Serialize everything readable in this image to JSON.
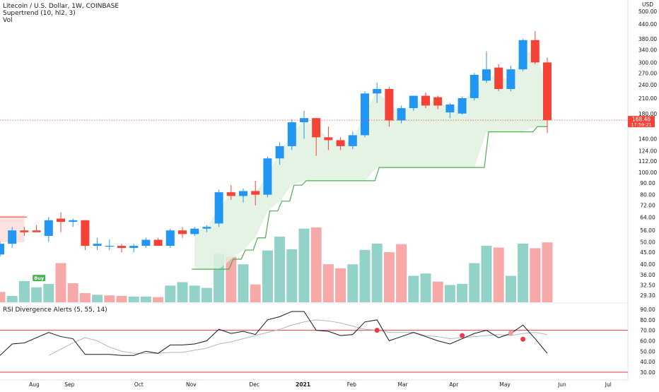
{
  "chart_data": {
    "type": "candlestick",
    "symbol_line": "Litecoin / U.S. Dollar, 1W, COINBASE",
    "indicator_supertrend": "Supertrend (10, hl2, 3)",
    "indicator_vol": "Vol",
    "rsi_title": "RSI Divergence Alerts (5, 55, 14)",
    "price_axis_unit": "USD",
    "price_ticks": [
      "500.00",
      "440.00",
      "380.00",
      "340.00",
      "300.00",
      "270.00",
      "240.00",
      "210.00",
      "180.00",
      "140.00",
      "124.00",
      "112.00",
      "100.00",
      "90.00",
      "80.00",
      "72.00",
      "64.00",
      "56.00",
      "50.00",
      "45.00",
      "40.00",
      "36.00",
      "32.50",
      "29.30"
    ],
    "rsi_ticks": [
      "90.00",
      "80.00",
      "70.00",
      "60.00",
      "50.00",
      "40.00",
      "30.00"
    ],
    "time_labels": [
      "Aug",
      "Sep",
      "Oct",
      "Nov",
      "Dec",
      "2021",
      "Feb",
      "Mar",
      "Apr",
      "May",
      "Jun",
      "Jul"
    ],
    "last_price": "168.46",
    "countdown": "17:59:21",
    "buy_label": "Buy",
    "candles": [
      {
        "o": 44,
        "h": 50,
        "l": 43,
        "c": 49
      },
      {
        "o": 49,
        "h": 58,
        "l": 47,
        "c": 56
      },
      {
        "o": 56,
        "h": 58,
        "l": 53,
        "c": 55
      },
      {
        "o": 56,
        "h": 59,
        "l": 55,
        "c": 55
      },
      {
        "o": 53,
        "h": 64,
        "l": 50,
        "c": 62
      },
      {
        "o": 63,
        "h": 67,
        "l": 55,
        "c": 61
      },
      {
        "o": 61,
        "h": 63,
        "l": 58,
        "c": 62
      },
      {
        "o": 62,
        "h": 62,
        "l": 46,
        "c": 48
      },
      {
        "o": 48,
        "h": 52,
        "l": 46,
        "c": 49
      },
      {
        "o": 48,
        "h": 51,
        "l": 46,
        "c": 48
      },
      {
        "o": 48,
        "h": 49,
        "l": 45,
        "c": 47
      },
      {
        "o": 47,
        "h": 49,
        "l": 45,
        "c": 48
      },
      {
        "o": 48,
        "h": 52,
        "l": 47,
        "c": 51
      },
      {
        "o": 51,
        "h": 52,
        "l": 48,
        "c": 48
      },
      {
        "o": 48,
        "h": 57,
        "l": 47,
        "c": 56
      },
      {
        "o": 56,
        "h": 58,
        "l": 52,
        "c": 54
      },
      {
        "o": 54,
        "h": 58,
        "l": 53,
        "c": 57
      },
      {
        "o": 57,
        "h": 59,
        "l": 55,
        "c": 58
      },
      {
        "o": 60,
        "h": 84,
        "l": 58,
        "c": 82
      },
      {
        "o": 82,
        "h": 88,
        "l": 76,
        "c": 79
      },
      {
        "o": 79,
        "h": 85,
        "l": 74,
        "c": 83
      },
      {
        "o": 83,
        "h": 92,
        "l": 72,
        "c": 80
      },
      {
        "o": 80,
        "h": 117,
        "l": 78,
        "c": 115
      },
      {
        "o": 115,
        "h": 135,
        "l": 108,
        "c": 130
      },
      {
        "o": 130,
        "h": 170,
        "l": 125,
        "c": 165
      },
      {
        "o": 165,
        "h": 185,
        "l": 140,
        "c": 172
      },
      {
        "o": 172,
        "h": 172,
        "l": 118,
        "c": 142
      },
      {
        "o": 142,
        "h": 158,
        "l": 125,
        "c": 138
      },
      {
        "o": 138,
        "h": 142,
        "l": 125,
        "c": 130
      },
      {
        "o": 130,
        "h": 150,
        "l": 126,
        "c": 145
      },
      {
        "o": 145,
        "h": 225,
        "l": 142,
        "c": 220
      },
      {
        "o": 220,
        "h": 245,
        "l": 200,
        "c": 230
      },
      {
        "o": 230,
        "h": 235,
        "l": 158,
        "c": 168
      },
      {
        "o": 168,
        "h": 195,
        "l": 163,
        "c": 190
      },
      {
        "o": 190,
        "h": 215,
        "l": 185,
        "c": 215
      },
      {
        "o": 215,
        "h": 222,
        "l": 190,
        "c": 195
      },
      {
        "o": 212,
        "h": 215,
        "l": 188,
        "c": 195
      },
      {
        "o": 182,
        "h": 200,
        "l": 172,
        "c": 197
      },
      {
        "o": 180,
        "h": 213,
        "l": 178,
        "c": 210
      },
      {
        "o": 210,
        "h": 270,
        "l": 205,
        "c": 265
      },
      {
        "o": 250,
        "h": 335,
        "l": 245,
        "c": 280
      },
      {
        "o": 285,
        "h": 295,
        "l": 225,
        "c": 230
      },
      {
        "o": 230,
        "h": 290,
        "l": 225,
        "c": 280
      },
      {
        "o": 280,
        "h": 380,
        "l": 275,
        "c": 375
      },
      {
        "o": 375,
        "h": 410,
        "l": 295,
        "c": 300
      },
      {
        "o": 300,
        "h": 315,
        "l": 148,
        "c": 168.46
      }
    ],
    "supertrend": [
      null,
      null,
      null,
      null,
      null,
      null,
      null,
      null,
      null,
      null,
      null,
      null,
      null,
      null,
      null,
      null,
      {
        "v": 38
      },
      {
        "v": 38
      },
      {
        "v": 38
      },
      {
        "v": 42
      },
      {
        "v": 46
      },
      {
        "v": 52
      },
      {
        "v": 68
      },
      {
        "v": 75
      },
      {
        "v": 88
      },
      {
        "v": 92
      },
      {
        "v": 92
      },
      {
        "v": 92
      },
      {
        "v": 92
      },
      {
        "v": 92
      },
      {
        "v": 92
      },
      {
        "v": 105
      },
      {
        "v": 105
      },
      {
        "v": 105
      },
      {
        "v": 105
      },
      {
        "v": 105
      },
      {
        "v": 105
      },
      {
        "v": 105
      },
      {
        "v": 105
      },
      {
        "v": 105
      },
      {
        "v": 150
      },
      {
        "v": 150
      },
      {
        "v": 150
      },
      {
        "v": 150
      },
      {
        "v": 158
      },
      {
        "v": 158
      }
    ],
    "supertrend_upper_start": 64,
    "volume": [
      {
        "v": 1.8,
        "up": false
      },
      {
        "v": 1.1,
        "up": true
      },
      {
        "v": 3.7,
        "up": true
      },
      {
        "v": 2.6,
        "up": true
      },
      {
        "v": 3.2,
        "up": true
      },
      {
        "v": 6.8,
        "up": false
      },
      {
        "v": 3.3,
        "up": false
      },
      {
        "v": 1.6,
        "up": false
      },
      {
        "v": 1.3,
        "up": true
      },
      {
        "v": 1.2,
        "up": false
      },
      {
        "v": 1.1,
        "up": false
      },
      {
        "v": 1.0,
        "up": true
      },
      {
        "v": 1.0,
        "up": true
      },
      {
        "v": 0.9,
        "up": false
      },
      {
        "v": 2.9,
        "up": true
      },
      {
        "v": 3.5,
        "up": true
      },
      {
        "v": 2.9,
        "up": true
      },
      {
        "v": 2.5,
        "up": true
      },
      {
        "v": 8.4,
        "up": true
      },
      {
        "v": 7.9,
        "up": false
      },
      {
        "v": 6.6,
        "up": true
      },
      {
        "v": 3.1,
        "up": false
      },
      {
        "v": 9.0,
        "up": true
      },
      {
        "v": 11.4,
        "up": true
      },
      {
        "v": 9.2,
        "up": true
      },
      {
        "v": 12.8,
        "up": true
      },
      {
        "v": 13.0,
        "up": false
      },
      {
        "v": 6.6,
        "up": false
      },
      {
        "v": 5.9,
        "up": false
      },
      {
        "v": 6.6,
        "up": true
      },
      {
        "v": 9.1,
        "up": true
      },
      {
        "v": 10.2,
        "up": true
      },
      {
        "v": 8.7,
        "up": false
      },
      {
        "v": 10.1,
        "up": false
      },
      {
        "v": 4.6,
        "up": true
      },
      {
        "v": 5.0,
        "up": true
      },
      {
        "v": 3.6,
        "up": false
      },
      {
        "v": 3.0,
        "up": true
      },
      {
        "v": 3.2,
        "up": true
      },
      {
        "v": 6.8,
        "up": true
      },
      {
        "v": 9.8,
        "up": true
      },
      {
        "v": 9.5,
        "up": false
      },
      {
        "v": 4.6,
        "up": true
      },
      {
        "v": 10.2,
        "up": true
      },
      {
        "v": 9.4,
        "up": false
      },
      {
        "v": 10.4,
        "up": false
      }
    ],
    "rsi": [
      46,
      57,
      58,
      63,
      68,
      64,
      62,
      47,
      47,
      47,
      46,
      46,
      50,
      48,
      56,
      56,
      57,
      60,
      71,
      67,
      69,
      66,
      80,
      83,
      88,
      88,
      70,
      69,
      65,
      66,
      78,
      80,
      60,
      64,
      68,
      64,
      60,
      57,
      62,
      67,
      70,
      63,
      67,
      75,
      62,
      48
    ],
    "rsi_ma": [
      null,
      null,
      null,
      null,
      46,
      52,
      58,
      63,
      60,
      54,
      50,
      48,
      48,
      48,
      49,
      49,
      51,
      53,
      57,
      59,
      62,
      65,
      68,
      71,
      75,
      78,
      80,
      79,
      77,
      74,
      71,
      70,
      68,
      68,
      68,
      65,
      64,
      62,
      63,
      64,
      65,
      66,
      65,
      67,
      68,
      66
    ],
    "rsi_upper": 70,
    "rsi_lower": 30,
    "bear_divergence_dots": [
      {
        "i": 31,
        "v": 70.0
      },
      {
        "i": 38,
        "v": 65.0
      },
      {
        "i": 42,
        "v": 67.5
      },
      {
        "i": 43,
        "v": 61.5
      }
    ],
    "colors": {
      "up": "#2196f3",
      "down": "#f44336",
      "supertrend": "#4caf50",
      "supertrend_fill": "#dff1df",
      "vol_up": "#93d2c8",
      "vol_down": "#f7a9a7",
      "rsi_line": "#131722",
      "rsi_ma": "#b2b5be",
      "rsi_band": "#f23645"
    }
  }
}
